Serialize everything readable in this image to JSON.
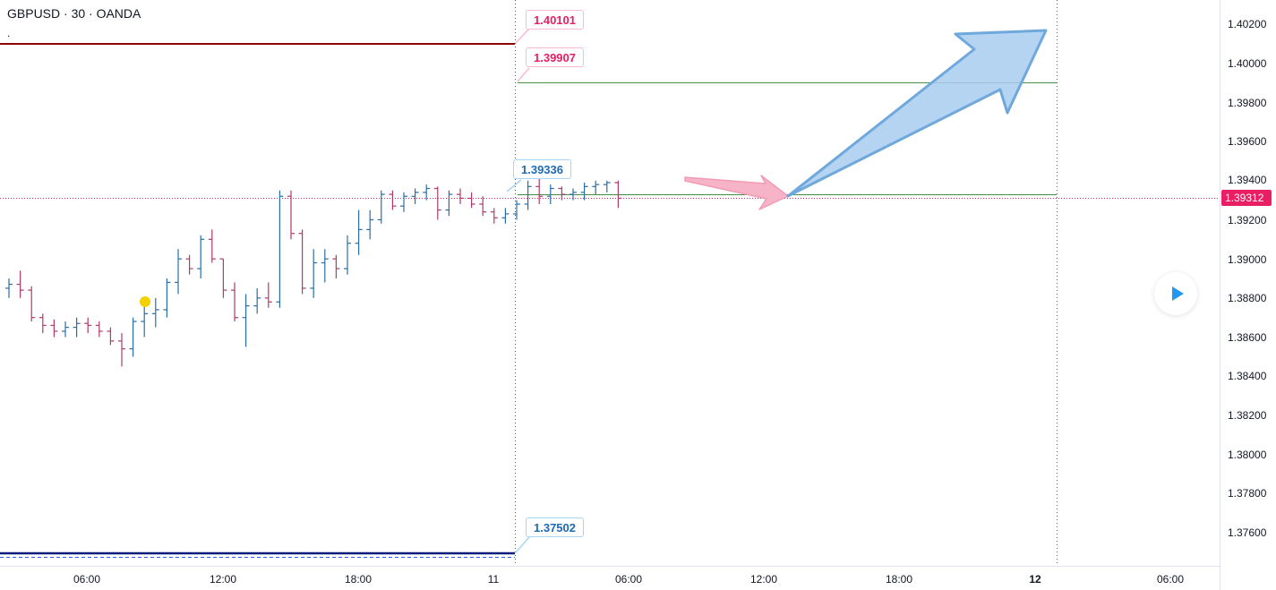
{
  "header": {
    "symbol": "GBPUSD · 30 · OANDA",
    "indicator_dot": "."
  },
  "price_axis": {
    "labels": [
      "1.40200",
      "1.40000",
      "1.39800",
      "1.39600",
      "1.39400",
      "1.39200",
      "1.39000",
      "1.38800",
      "1.38600",
      "1.38400",
      "1.38200",
      "1.38000",
      "1.37800",
      "1.37600"
    ],
    "last_price": "1.39312",
    "last_price_color": "#e91e63"
  },
  "time_axis": {
    "labels": [
      "06:00",
      "12:00",
      "18:00",
      "11",
      "06:00",
      "12:00",
      "18:00",
      "12",
      "06:00"
    ],
    "bold": [
      false,
      false,
      false,
      false,
      false,
      false,
      false,
      true,
      false
    ]
  },
  "callouts": {
    "red_top": "1.40101",
    "red_second": "1.39907",
    "blue_mid": "1.39336",
    "blue_bottom": "1.37502"
  },
  "colors": {
    "up_bar": "#2a6ea5",
    "down_bar": "#b03a6a",
    "resistance_line": "#8b0000",
    "support_line": "#0d1c7a",
    "target_line": "#4c8c4a",
    "arrow_blue": "#a8ccf0",
    "arrow_pink": "#f7b3c8",
    "marker": "#f5d000"
  },
  "chart_data": {
    "type": "ohlc",
    "symbol": "GBPUSD",
    "timeframe": "30",
    "ylim": [
      1.3745,
      1.403
    ],
    "bars": [
      [
        1.3885,
        1.389,
        1.388,
        1.3887
      ],
      [
        1.3887,
        1.3894,
        1.388,
        1.3884
      ],
      [
        1.3884,
        1.3886,
        1.3868,
        1.387
      ],
      [
        1.387,
        1.3872,
        1.3862,
        1.3866
      ],
      [
        1.3866,
        1.3869,
        1.386,
        1.3863
      ],
      [
        1.3863,
        1.3868,
        1.386,
        1.3865
      ],
      [
        1.3865,
        1.387,
        1.386,
        1.3867
      ],
      [
        1.3867,
        1.387,
        1.3862,
        1.3866
      ],
      [
        1.3866,
        1.3868,
        1.386,
        1.3863
      ],
      [
        1.3863,
        1.3865,
        1.3856,
        1.3858
      ],
      [
        1.3858,
        1.3862,
        1.3845,
        1.3854
      ],
      [
        1.3854,
        1.387,
        1.385,
        1.3868
      ],
      [
        1.3868,
        1.3878,
        1.386,
        1.3872
      ],
      [
        1.3872,
        1.388,
        1.3865,
        1.3874
      ],
      [
        1.3874,
        1.389,
        1.387,
        1.3888
      ],
      [
        1.3888,
        1.3905,
        1.3882,
        1.39
      ],
      [
        1.39,
        1.3902,
        1.3892,
        1.3895
      ],
      [
        1.3895,
        1.3912,
        1.389,
        1.391
      ],
      [
        1.391,
        1.3915,
        1.3898,
        1.39
      ],
      [
        1.39,
        1.39,
        1.388,
        1.3884
      ],
      [
        1.3884,
        1.3888,
        1.3868,
        1.387
      ],
      [
        1.387,
        1.3882,
        1.3855,
        1.3876
      ],
      [
        1.3876,
        1.3885,
        1.3872,
        1.388
      ],
      [
        1.388,
        1.3888,
        1.3875,
        1.3878
      ],
      [
        1.3878,
        1.3935,
        1.3875,
        1.3932
      ],
      [
        1.3932,
        1.3935,
        1.391,
        1.3913
      ],
      [
        1.3913,
        1.3915,
        1.3882,
        1.3885
      ],
      [
        1.3885,
        1.3905,
        1.388,
        1.3898
      ],
      [
        1.3898,
        1.3905,
        1.3888,
        1.39
      ],
      [
        1.39,
        1.3902,
        1.389,
        1.3895
      ],
      [
        1.3895,
        1.3912,
        1.3892,
        1.3908
      ],
      [
        1.3908,
        1.3925,
        1.3902,
        1.3915
      ],
      [
        1.3915,
        1.3925,
        1.391,
        1.392
      ],
      [
        1.392,
        1.3935,
        1.3918,
        1.3933
      ],
      [
        1.3933,
        1.3935,
        1.3925,
        1.3927
      ],
      [
        1.3927,
        1.3934,
        1.3924,
        1.3932
      ],
      [
        1.3932,
        1.3936,
        1.3928,
        1.3934
      ],
      [
        1.3934,
        1.3938,
        1.393,
        1.3936
      ],
      [
        1.3936,
        1.3937,
        1.392,
        1.3925
      ],
      [
        1.3925,
        1.3935,
        1.3922,
        1.3933
      ],
      [
        1.3933,
        1.3936,
        1.3928,
        1.3931
      ],
      [
        1.3931,
        1.3934,
        1.3926,
        1.3928
      ],
      [
        1.3928,
        1.3932,
        1.3922,
        1.3924
      ],
      [
        1.3924,
        1.3926,
        1.3918,
        1.3921
      ],
      [
        1.3921,
        1.3926,
        1.3918,
        1.3923
      ],
      [
        1.3923,
        1.393,
        1.392,
        1.3928
      ],
      [
        1.3928,
        1.394,
        1.3925,
        1.3937
      ],
      [
        1.3937,
        1.3941,
        1.3928,
        1.3932
      ],
      [
        1.3932,
        1.3938,
        1.3928,
        1.3936
      ],
      [
        1.3936,
        1.3937,
        1.393,
        1.3933
      ],
      [
        1.3933,
        1.3936,
        1.393,
        1.3934
      ],
      [
        1.3934,
        1.3939,
        1.393,
        1.3937
      ],
      [
        1.3937,
        1.394,
        1.3933,
        1.3938
      ],
      [
        1.3938,
        1.394,
        1.3934,
        1.3939
      ],
      [
        1.3939,
        1.394,
        1.3926,
        1.3931
      ]
    ],
    "horizontal_levels": [
      1.40101,
      1.39907,
      1.39336,
      1.37502
    ],
    "last_price": 1.39312
  }
}
